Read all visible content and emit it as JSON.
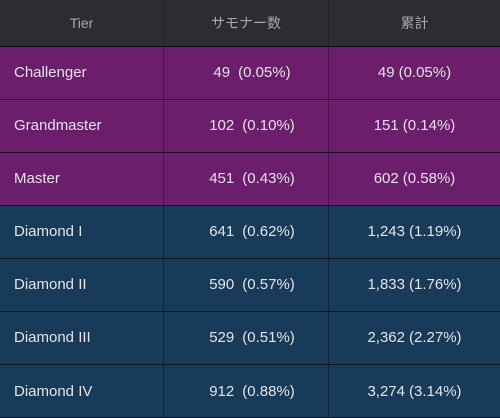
{
  "colors": {
    "header_bg": "#2b2d31",
    "purple_row": "#6b1e6b",
    "blue_row": "#173b58"
  },
  "header": {
    "tier": "Tier",
    "summoners": "サモナー数",
    "cumulative": "累計"
  },
  "rows": [
    {
      "tier": "Challenger",
      "count": "49",
      "pct": "(0.05%)",
      "cum": "49",
      "cum_pct": "(0.05%)",
      "group": "purple"
    },
    {
      "tier": "Grandmaster",
      "count": "102",
      "pct": "(0.10%)",
      "cum": "151",
      "cum_pct": "(0.14%)",
      "group": "purple"
    },
    {
      "tier": "Master",
      "count": "451",
      "pct": "(0.43%)",
      "cum": "602",
      "cum_pct": "(0.58%)",
      "group": "purple"
    },
    {
      "tier": "Diamond I",
      "count": "641",
      "pct": "(0.62%)",
      "cum": "1,243",
      "cum_pct": "(1.19%)",
      "group": "blue"
    },
    {
      "tier": "Diamond II",
      "count": "590",
      "pct": "(0.57%)",
      "cum": "1,833",
      "cum_pct": "(1.76%)",
      "group": "blue"
    },
    {
      "tier": "Diamond III",
      "count": "529",
      "pct": "(0.51%)",
      "cum": "2,362",
      "cum_pct": "(2.27%)",
      "group": "blue"
    },
    {
      "tier": "Diamond IV",
      "count": "912",
      "pct": "(0.88%)",
      "cum": "3,274",
      "cum_pct": "(3.14%)",
      "group": "blue"
    }
  ]
}
